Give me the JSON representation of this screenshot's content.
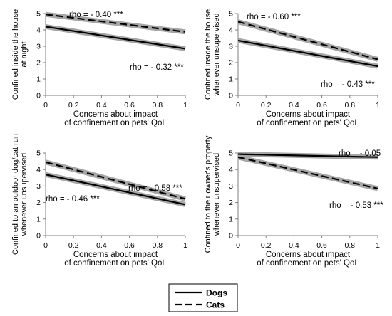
{
  "chart_data": [
    {
      "type": "line",
      "ylabel": [
        "Confined inside the house",
        "at night"
      ],
      "xlabel": [
        "Concerns about impact",
        "of confinement on pets' QoL"
      ],
      "xlim": [
        0,
        1
      ],
      "ylim": [
        0,
        5
      ],
      "x_ticks": [
        "0",
        "0.2",
        "0.4",
        "0.6",
        "0.8",
        "1"
      ],
      "y_ticks": [
        "0",
        "1",
        "2",
        "3",
        "4",
        "5"
      ],
      "series": [
        {
          "name": "Dogs",
          "style": "solid",
          "x": [
            0,
            1
          ],
          "y": [
            4.2,
            2.85
          ],
          "annotation": "rho = - 0.32 ***"
        },
        {
          "name": "Cats",
          "style": "dashed",
          "x": [
            0,
            1
          ],
          "y": [
            4.95,
            3.88
          ],
          "annotation": "rho = - 0.40 ***"
        }
      ]
    },
    {
      "type": "line",
      "ylabel": [
        "Confined inside the house",
        "whenever unsupervised"
      ],
      "xlabel": [
        "Concerns about impact",
        "of confinement on pets' QoL"
      ],
      "xlim": [
        0,
        1
      ],
      "ylim": [
        0,
        5
      ],
      "x_ticks": [
        "0",
        "0.2",
        "0.4",
        "0.6",
        "0.8",
        "1"
      ],
      "y_ticks": [
        "0",
        "1",
        "2",
        "3",
        "4",
        "5"
      ],
      "series": [
        {
          "name": "Dogs",
          "style": "solid",
          "x": [
            0,
            1
          ],
          "y": [
            3.35,
            1.78
          ],
          "annotation": "rho = - 0.43 ***"
        },
        {
          "name": "Cats",
          "style": "dashed",
          "x": [
            0,
            1
          ],
          "y": [
            4.5,
            2.2
          ],
          "annotation": "rho = - 0.60 ***"
        }
      ]
    },
    {
      "type": "line",
      "ylabel": [
        "Confined to an outdoor dog/cat run",
        "whenever unsupervised"
      ],
      "xlabel": [
        "Concerns about impact",
        "of confinement on pets' QoL"
      ],
      "xlim": [
        0,
        1
      ],
      "ylim": [
        0,
        5
      ],
      "x_ticks": [
        "0",
        "0.2",
        "0.4",
        "0.6",
        "0.8",
        "1"
      ],
      "y_ticks": [
        "0",
        "1",
        "2",
        "3",
        "4",
        "5"
      ],
      "series": [
        {
          "name": "Dogs",
          "style": "solid",
          "x": [
            0,
            1
          ],
          "y": [
            3.7,
            1.88
          ],
          "annotation": "rho = - 0.46 ***"
        },
        {
          "name": "Cats",
          "style": "dashed",
          "x": [
            0,
            1
          ],
          "y": [
            4.45,
            2.22
          ],
          "annotation": "rho = - 0.58 ***"
        }
      ]
    },
    {
      "type": "line",
      "ylabel": [
        "Confined to their owner's property",
        "whenever unsupervised"
      ],
      "xlabel": [
        "Concerns about impact",
        "of confinement on pets' QoL"
      ],
      "xlim": [
        0,
        1
      ],
      "ylim": [
        0,
        5
      ],
      "x_ticks": [
        "0",
        "0.2",
        "0.4",
        "0.6",
        "0.8",
        "1"
      ],
      "y_ticks": [
        "0",
        "1",
        "2",
        "3",
        "4",
        "5"
      ],
      "series": [
        {
          "name": "Dogs",
          "style": "solid",
          "x": [
            0,
            1
          ],
          "y": [
            4.93,
            4.75
          ],
          "annotation": "rho = - 0.05"
        },
        {
          "name": "Cats",
          "style": "dashed",
          "x": [
            0,
            1
          ],
          "y": [
            4.75,
            2.85
          ],
          "annotation": "rho = - 0.53 ***"
        }
      ]
    }
  ],
  "legend": {
    "items": [
      {
        "label": "Dogs",
        "style": "solid"
      },
      {
        "label": "Cats",
        "style": "dashed"
      }
    ],
    "position": "bottom-center"
  }
}
